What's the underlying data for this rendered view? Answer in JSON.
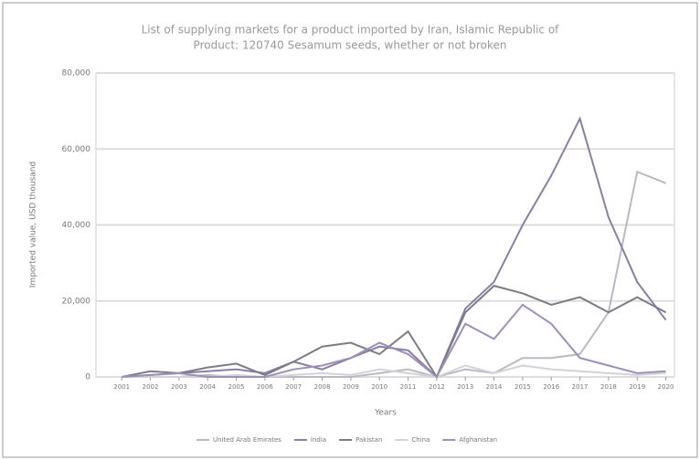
{
  "chart_data": {
    "type": "line",
    "title": "List of supplying markets for a product imported by Iran, Islamic Republic of",
    "subtitle": "Product: 120740 Sesamum seeds, whether or not broken",
    "x_label": "Years",
    "y_label": "Imported value, USD thousand",
    "categories": [
      "2001",
      "2002",
      "2003",
      "2004",
      "2005",
      "2006",
      "2007",
      "2008",
      "2009",
      "2010",
      "2011",
      "2012",
      "2013",
      "2014",
      "2015",
      "2016",
      "2017",
      "2018",
      "2019",
      "2020"
    ],
    "series": [
      {
        "name": "United Arab Emirates",
        "color": "#b9b9c4",
        "values": [
          0,
          0,
          0,
          500,
          0,
          0,
          0,
          0,
          0,
          1000,
          2000,
          0,
          2000,
          1000,
          5000,
          5000,
          6000,
          17000,
          54000,
          51000
        ]
      },
      {
        "name": "India",
        "color": "#8a7fa3",
        "values": [
          0,
          500,
          1000,
          1500,
          2000,
          1000,
          4000,
          2000,
          5000,
          8000,
          7000,
          0,
          18000,
          25000,
          40000,
          53000,
          68000,
          42000,
          25000,
          15000
        ]
      },
      {
        "name": "Pakistan",
        "color": "#7c7c86",
        "values": [
          0,
          1500,
          1000,
          2500,
          3500,
          500,
          4000,
          8000,
          9000,
          6000,
          12000,
          0,
          17000,
          24000,
          22000,
          19000,
          21000,
          17000,
          21000,
          17000
        ]
      },
      {
        "name": "China",
        "color": "#d2d2d8",
        "values": [
          0,
          0,
          0,
          0,
          500,
          0,
          500,
          1000,
          500,
          2000,
          1000,
          0,
          3000,
          1000,
          3000,
          2000,
          1500,
          1000,
          500,
          1000
        ]
      },
      {
        "name": "Afghanistan",
        "color": "#9d8fb5",
        "values": [
          0,
          500,
          1000,
          0,
          0,
          0,
          2000,
          3000,
          5000,
          9000,
          6000,
          0,
          14000,
          10000,
          19000,
          14000,
          5000,
          3000,
          1000,
          1500
        ]
      }
    ],
    "ylim": [
      0,
      80000
    ],
    "yticks": [
      0,
      {
        "value": 20000,
        "label": "20,000"
      },
      {
        "value": 40000,
        "label": "40,000"
      },
      {
        "value": 60000,
        "label": "60,000"
      },
      {
        "value": 80000,
        "label": "80,000"
      }
    ],
    "grid": true,
    "legend": "bottom"
  }
}
